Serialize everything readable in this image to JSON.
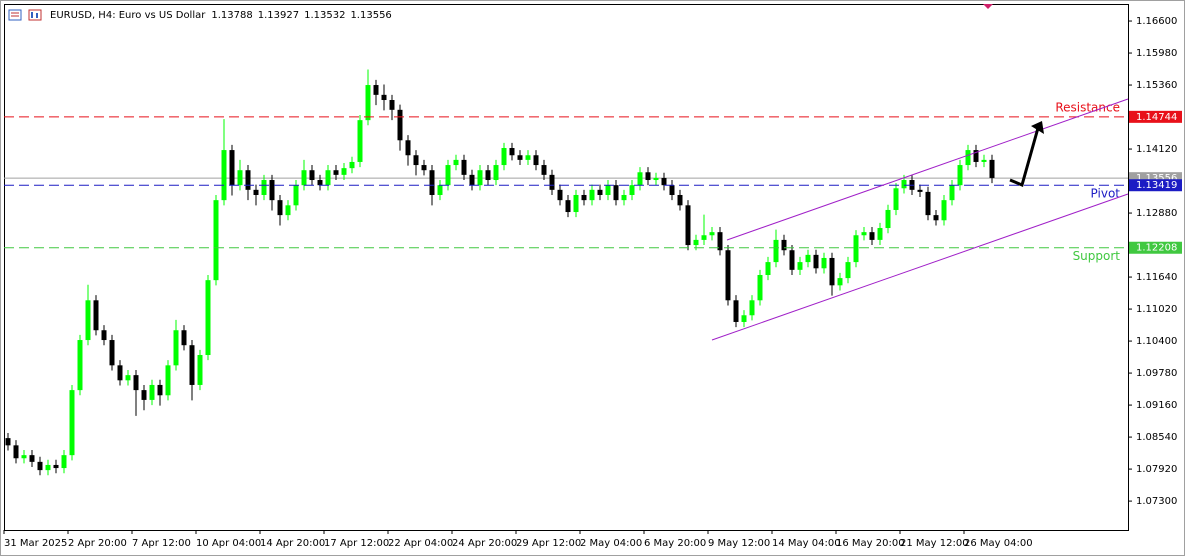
{
  "chart_data": {
    "type": "candlestick",
    "title": "EURUSD, H4:  Euro vs US Dollar",
    "header_values": [
      1.13788,
      1.13927,
      1.13532,
      1.13556
    ],
    "categories": [
      "31 Mar 2025",
      null,
      null,
      null,
      null,
      null,
      null,
      null,
      "2 Apr 20:00",
      null,
      null,
      null,
      null,
      null,
      null,
      null,
      "7 Apr 12:00",
      null,
      null,
      null,
      null,
      null,
      null,
      null,
      "10 Apr 04:00",
      null,
      null,
      null,
      null,
      null,
      null,
      null,
      "14 Apr 20:00",
      null,
      null,
      null,
      null,
      null,
      null,
      null,
      "17 Apr 12:00",
      null,
      null,
      null,
      null,
      null,
      null,
      null,
      "22 Apr 04:00",
      null,
      null,
      null,
      null,
      null,
      null,
      null,
      "24 Apr 20:00",
      null,
      null,
      null,
      null,
      null,
      null,
      null,
      "29 Apr 12:00",
      null,
      null,
      null,
      null,
      null,
      null,
      null,
      "2 May 04:00",
      null,
      null,
      null,
      null,
      null,
      null,
      null,
      "6 May 20:00",
      null,
      null,
      null,
      null,
      null,
      null,
      null,
      "9 May 12:00",
      null,
      null,
      null,
      null,
      null,
      null,
      null,
      "14 May 04:00",
      null,
      null,
      null,
      null,
      null,
      null,
      null,
      "16 May 20:00",
      null,
      null,
      null,
      null,
      null,
      null,
      null,
      "21 May 12:00",
      null,
      null,
      null,
      null,
      null,
      null,
      null,
      "26 May 04:00",
      null,
      null,
      null
    ],
    "open": [
      1.0852,
      1.0838,
      1.0813,
      1.0819,
      1.0806,
      1.079,
      1.08,
      1.0794,
      1.0819,
      1.0945,
      1.1042,
      1.1119,
      1.1061,
      1.1042,
      1.0993,
      1.0964,
      1.0974,
      1.0945,
      1.0926,
      1.0955,
      1.0935,
      1.0993,
      1.1061,
      1.1032,
      1.0955,
      1.1013,
      1.1158,
      1.1313,
      1.141,
      1.1342,
      1.1371,
      1.1333,
      1.1323,
      1.1352,
      1.1313,
      1.1284,
      1.1303,
      1.1342,
      1.1371,
      1.1352,
      1.1342,
      1.1371,
      1.1362,
      1.1375,
      1.1387,
      1.1468,
      1.1536,
      1.1517,
      1.1507,
      1.1488,
      1.1429,
      1.14,
      1.1381,
      1.1371,
      1.1323,
      1.1342,
      1.1381,
      1.1391,
      1.1362,
      1.1342,
      1.1371,
      1.1352,
      1.1381,
      1.1414,
      1.14,
      1.1391,
      1.14,
      1.1381,
      1.1362,
      1.1333,
      1.1313,
      1.129,
      1.1323,
      1.1313,
      1.1333,
      1.1323,
      1.1342,
      1.1313,
      1.1323,
      1.1342,
      1.1367,
      1.1352,
      1.1356,
      1.1342,
      1.1323,
      1.1303,
      1.1226,
      1.1236,
      1.1245,
      1.1251,
      1.1216,
      1.1119,
      1.1077,
      1.109,
      1.1119,
      1.1168,
      1.1193,
      1.1236,
      1.1216,
      1.1178,
      1.1193,
      1.1207,
      1.1181,
      1.1201,
      1.1148,
      1.1162,
      1.1193,
      1.1245,
      1.1251,
      1.1236,
      1.1259,
      1.1294,
      1.1336,
      1.1352,
      1.1333,
      1.1329,
      1.1284,
      1.1274,
      1.1313,
      1.1342,
      1.1381,
      1.141,
      1.1387,
      1.1391
    ],
    "high": [
      1.0862,
      1.0848,
      1.0829,
      1.0829,
      1.0816,
      1.081,
      1.081,
      1.0829,
      1.0955,
      1.1052,
      1.1149,
      1.1129,
      1.1071,
      1.1052,
      1.1003,
      1.0984,
      1.0984,
      1.0955,
      1.0965,
      1.0965,
      1.1003,
      1.1081,
      1.1071,
      1.1042,
      1.1023,
      1.1168,
      1.1323,
      1.147,
      1.142,
      1.1391,
      1.1381,
      1.1343,
      1.1362,
      1.1362,
      1.1323,
      1.1313,
      1.1352,
      1.1391,
      1.1381,
      1.1362,
      1.1381,
      1.1381,
      1.1385,
      1.1397,
      1.1478,
      1.1566,
      1.1546,
      1.1537,
      1.1517,
      1.1498,
      1.1439,
      1.141,
      1.1391,
      1.1381,
      1.1352,
      1.1391,
      1.1401,
      1.1401,
      1.1372,
      1.1381,
      1.1381,
      1.1391,
      1.1424,
      1.1424,
      1.141,
      1.141,
      1.141,
      1.1391,
      1.1372,
      1.1343,
      1.1323,
      1.1333,
      1.1333,
      1.1343,
      1.1343,
      1.1352,
      1.1352,
      1.1333,
      1.1352,
      1.1377,
      1.1377,
      1.1366,
      1.1366,
      1.1352,
      1.1333,
      1.1313,
      1.1246,
      1.1285,
      1.1261,
      1.1261,
      1.1226,
      1.1129,
      1.11,
      1.1129,
      1.1178,
      1.1203,
      1.1256,
      1.1246,
      1.1226,
      1.1203,
      1.1217,
      1.1217,
      1.1211,
      1.1211,
      1.1172,
      1.1203,
      1.1255,
      1.1261,
      1.1261,
      1.1269,
      1.1304,
      1.1346,
      1.1362,
      1.1362,
      1.1343,
      1.1339,
      1.1294,
      1.1323,
      1.1352,
      1.1391,
      1.142,
      1.142,
      1.1401,
      1.1401
    ],
    "low": [
      1.0828,
      1.0803,
      1.0803,
      1.0796,
      1.078,
      1.078,
      1.0784,
      1.0784,
      1.0809,
      1.0935,
      1.1032,
      1.1051,
      1.1032,
      1.0983,
      1.0954,
      1.0954,
      1.0895,
      1.0906,
      1.0916,
      1.0915,
      1.0925,
      1.0983,
      1.1022,
      1.0925,
      1.0945,
      1.1003,
      1.1148,
      1.1303,
      1.1322,
      1.1332,
      1.1313,
      1.1303,
      1.1313,
      1.1293,
      1.1264,
      1.1274,
      1.1293,
      1.1332,
      1.1342,
      1.1332,
      1.1332,
      1.1352,
      1.1352,
      1.1365,
      1.1377,
      1.1458,
      1.1497,
      1.1487,
      1.1468,
      1.1409,
      1.138,
      1.1361,
      1.1361,
      1.1303,
      1.1313,
      1.1332,
      1.1371,
      1.1352,
      1.1332,
      1.1332,
      1.1342,
      1.1342,
      1.1371,
      1.139,
      1.1381,
      1.1381,
      1.1371,
      1.1352,
      1.1323,
      1.1303,
      1.128,
      1.128,
      1.1303,
      1.1303,
      1.1313,
      1.1313,
      1.1303,
      1.1303,
      1.1313,
      1.1332,
      1.1342,
      1.1342,
      1.1332,
      1.1313,
      1.1293,
      1.1216,
      1.1216,
      1.1226,
      1.1235,
      1.1206,
      1.1109,
      1.1067,
      1.1067,
      1.108,
      1.1109,
      1.1158,
      1.1183,
      1.1206,
      1.1168,
      1.1168,
      1.1183,
      1.1171,
      1.1171,
      1.1128,
      1.1138,
      1.1152,
      1.1183,
      1.1235,
      1.1226,
      1.1226,
      1.1249,
      1.1284,
      1.1326,
      1.1323,
      1.1319,
      1.1274,
      1.1264,
      1.1264,
      1.1303,
      1.1332,
      1.1371,
      1.1377,
      1.1377,
      1.1346
    ],
    "close": [
      1.0838,
      1.0813,
      1.0819,
      1.0806,
      1.079,
      1.08,
      1.0794,
      1.0819,
      1.0945,
      1.1042,
      1.1119,
      1.1061,
      1.1042,
      1.0993,
      1.0964,
      1.0974,
      1.0945,
      1.0926,
      1.0955,
      1.0935,
      1.0993,
      1.1061,
      1.1032,
      1.0955,
      1.1013,
      1.1158,
      1.1313,
      1.141,
      1.1342,
      1.1371,
      1.1333,
      1.1323,
      1.1352,
      1.1313,
      1.1284,
      1.1303,
      1.1342,
      1.1371,
      1.1352,
      1.1342,
      1.1371,
      1.1362,
      1.1375,
      1.1387,
      1.1468,
      1.1536,
      1.1517,
      1.1507,
      1.1488,
      1.1429,
      1.14,
      1.1381,
      1.1371,
      1.1323,
      1.1342,
      1.1381,
      1.1391,
      1.1362,
      1.1342,
      1.1371,
      1.1352,
      1.1381,
      1.1414,
      1.14,
      1.1391,
      1.14,
      1.1381,
      1.1362,
      1.1333,
      1.1313,
      1.129,
      1.1323,
      1.1313,
      1.1333,
      1.1323,
      1.1342,
      1.1313,
      1.1323,
      1.1342,
      1.1367,
      1.1352,
      1.1356,
      1.1342,
      1.1323,
      1.1303,
      1.1226,
      1.1236,
      1.1245,
      1.1251,
      1.1216,
      1.1119,
      1.1077,
      1.109,
      1.1119,
      1.1168,
      1.1193,
      1.1236,
      1.1216,
      1.1178,
      1.1193,
      1.1207,
      1.1181,
      1.1201,
      1.1148,
      1.1162,
      1.1193,
      1.1245,
      1.1251,
      1.1236,
      1.1259,
      1.1294,
      1.1336,
      1.1352,
      1.1333,
      1.1329,
      1.1284,
      1.1274,
      1.1313,
      1.1342,
      1.1381,
      1.141,
      1.1387,
      1.1391,
      1.1356
    ],
    "up_color": "#00ff00",
    "down_color": "#000000",
    "ylim": [
      1.0674,
      1.1693
    ],
    "yticks": [
      {
        "value": 1.166,
        "label": "1.16600"
      },
      {
        "value": 1.1598,
        "label": "1.15980"
      },
      {
        "value": 1.1536,
        "label": "1.15360"
      },
      {
        "value": 1.1412,
        "label": "1.14120"
      },
      {
        "value": 1.1288,
        "label": "1.12880"
      },
      {
        "value": 1.1164,
        "label": "1.11640"
      },
      {
        "value": 1.1102,
        "label": "1.11020"
      },
      {
        "value": 1.104,
        "label": "1.10400"
      },
      {
        "value": 1.0978,
        "label": "1.09780"
      },
      {
        "value": 1.0916,
        "label": "1.09160"
      },
      {
        "value": 1.0854,
        "label": "1.08540"
      },
      {
        "value": 1.0792,
        "label": "1.07920"
      },
      {
        "value": 1.073,
        "label": "1.07300"
      }
    ],
    "bid": {
      "value": 1.13556,
      "color": "#a0a0a0"
    },
    "levels": [
      {
        "name": "Resistance",
        "value": 1.14744,
        "color": "#e8101a"
      },
      {
        "name": "Pivot",
        "value": 1.13419,
        "color": "#1c1cc4"
      },
      {
        "name": "Support",
        "value": 1.12208,
        "color": "#40c840"
      }
    ]
  }
}
